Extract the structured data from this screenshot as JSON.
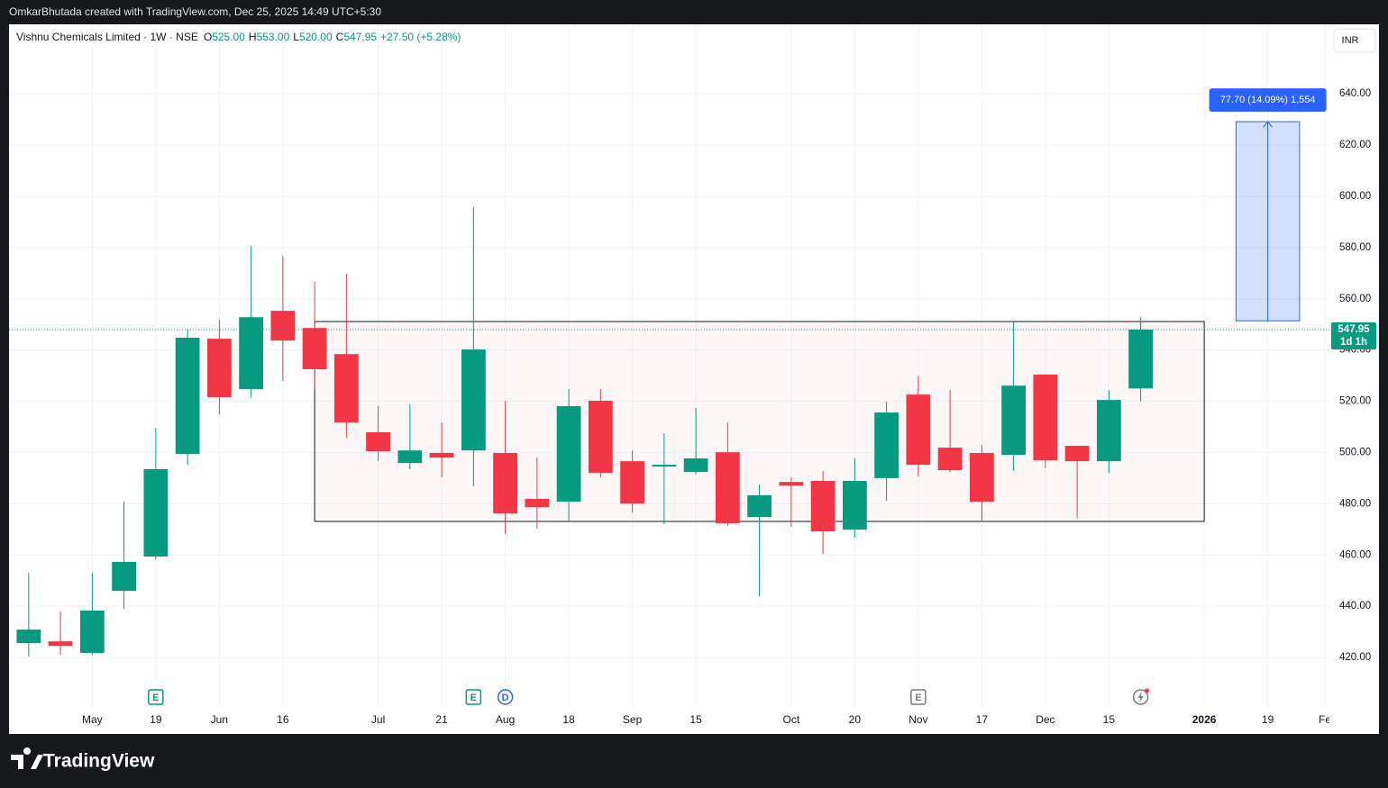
{
  "header": {
    "caption": "OmkarBhutada created with TradingView.com, Dec 25, 2025 14:49 UTC+5:30",
    "currency": "INR",
    "brand": "TradingView"
  },
  "chart_data": {
    "type": "candlestick",
    "legend": {
      "symbol": "Vishnu Chemicals Limited · 1W · NSE",
      "items": [
        {
          "key": "O",
          "value": "525.00"
        },
        {
          "key": "H",
          "value": "553.00"
        },
        {
          "key": "L",
          "value": "520.00"
        },
        {
          "key": "C",
          "value": "547.95"
        }
      ],
      "change": "+27.50 (+5.28%)"
    },
    "up_color": "#089981",
    "down_color": "#f23645",
    "open": [
      425.6,
      426.3,
      421.8,
      446.0,
      459.4,
      499.4,
      544.4,
      524.7,
      555.3,
      548.6,
      538.4,
      507.9,
      495.9,
      499.8,
      500.8,
      499.8,
      481.9,
      480.8,
      520.2,
      496.6,
      494.5,
      492.4,
      500.1,
      474.8,
      488.5,
      488.9,
      469.9,
      490.0,
      522.6,
      501.9,
      499.8,
      499.1,
      530.4,
      502.6,
      496.6,
      525.0
    ],
    "high": [
      453.0,
      437.9,
      453.0,
      480.8,
      509.6,
      548.3,
      551.8,
      580.6,
      576.7,
      566.6,
      569.7,
      518.1,
      518.8,
      511.7,
      595.7,
      520.2,
      498.0,
      524.7,
      524.7,
      500.8,
      507.5,
      517.4,
      511.7,
      487.5,
      490.3,
      492.8,
      497.7,
      519.8,
      529.7,
      524.4,
      503.0,
      551.1,
      530.4,
      502.6,
      524.4,
      553.0
    ],
    "low": [
      420.4,
      421.1,
      421.0,
      439.0,
      458.3,
      495.2,
      514.9,
      521.6,
      527.9,
      524.7,
      505.8,
      496.6,
      493.5,
      490.3,
      486.8,
      468.2,
      470.3,
      473.4,
      490.3,
      476.6,
      472.0,
      491.4,
      471.3,
      443.9,
      471.0,
      460.4,
      466.8,
      481.2,
      490.7,
      492.4,
      473.4,
      492.8,
      493.8,
      474.5,
      492.1,
      520.0
    ],
    "close": [
      430.9,
      424.6,
      438.3,
      457.3,
      493.5,
      544.8,
      521.6,
      552.8,
      543.7,
      532.5,
      511.7,
      500.5,
      500.8,
      498.0,
      540.2,
      476.2,
      478.7,
      518.1,
      492.1,
      480.1,
      495.2,
      497.7,
      472.4,
      483.3,
      487.1,
      469.2,
      488.9,
      515.6,
      495.2,
      493.1,
      480.8,
      526.1,
      497.0,
      496.6,
      520.5,
      547.95
    ],
    "last_price_label": "547.95",
    "countdown": "1d 1h",
    "xlim": [
      -0.62,
      40.94
    ],
    "xticks": [
      {
        "value": 2,
        "label": "May"
      },
      {
        "value": 4,
        "label": "19"
      },
      {
        "value": 6,
        "label": "Jun"
      },
      {
        "value": 8,
        "label": "16"
      },
      {
        "value": 11,
        "label": "Jul"
      },
      {
        "value": 13,
        "label": "21"
      },
      {
        "value": 15,
        "label": "Aug"
      },
      {
        "value": 17,
        "label": "18"
      },
      {
        "value": 19,
        "label": "Sep"
      },
      {
        "value": 21,
        "label": "15"
      },
      {
        "value": 24,
        "label": "Oct"
      },
      {
        "value": 26,
        "label": "20"
      },
      {
        "value": 28,
        "label": "Nov"
      },
      {
        "value": 30,
        "label": "17"
      },
      {
        "value": 32,
        "label": "Dec"
      },
      {
        "value": 34,
        "label": "15"
      },
      {
        "value": 37,
        "label": "2026"
      },
      {
        "value": 39,
        "label": "19"
      },
      {
        "value": 40.8,
        "label": "Fe"
      }
    ],
    "ylim": [
      400.7,
      667.1
    ],
    "yticks": [
      {
        "value": 420,
        "label": "420.00"
      },
      {
        "value": 440,
        "label": "440.00"
      },
      {
        "value": 460,
        "label": "460.00"
      },
      {
        "value": 480,
        "label": "480.00"
      },
      {
        "value": 500,
        "label": "500.00"
      },
      {
        "value": 520,
        "label": "520.00"
      },
      {
        "value": 540,
        "label": "540.00"
      },
      {
        "value": 560,
        "label": "560.00"
      },
      {
        "value": 580,
        "label": "580.00"
      },
      {
        "value": 600,
        "label": "600.00"
      },
      {
        "value": 620,
        "label": "620.00"
      },
      {
        "value": 640,
        "label": "640.00"
      }
    ],
    "grid": true,
    "rectangle": {
      "x_start": 9,
      "x_end": 37,
      "top": 551.1,
      "bottom": 473.1
    },
    "measure": {
      "label": "77.70 (14.09%) 1,554",
      "x_start": 38,
      "x_end": 40,
      "from": 551.4,
      "to": 629.1
    },
    "events": [
      {
        "index": 4,
        "label": "E"
      },
      {
        "index": 14,
        "label": "E"
      },
      {
        "index": 15,
        "label": "D"
      },
      {
        "index": 28,
        "label": "E"
      }
    ]
  }
}
